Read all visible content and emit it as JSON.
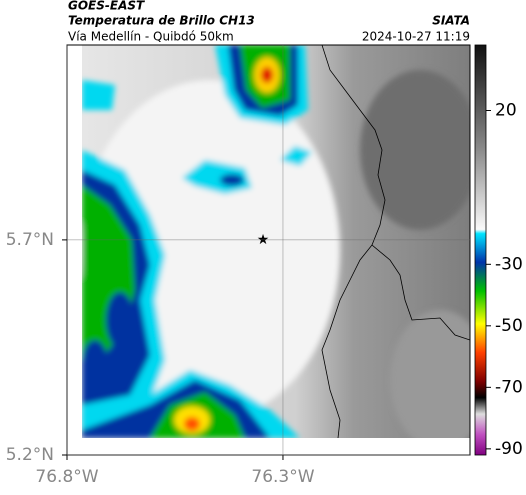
{
  "header": {
    "source": "GOES-EAST",
    "title": "Temperatura de Brillo CH13",
    "subtitle": "Vía Medellín - Quibdó 50km",
    "org": "SIATA",
    "timestamp": "2024-10-27 11:19"
  },
  "map": {
    "xlim": [
      -76.8,
      -75.867
    ],
    "ylim": [
      5.2,
      6.153
    ],
    "xticks": [
      {
        "value": -76.8,
        "label": "76.8°W"
      },
      {
        "value": -76.3,
        "label": "76.3°W"
      }
    ],
    "yticks": [
      {
        "value": 5.7,
        "label": "5.7°N"
      },
      {
        "value": 5.2,
        "label": "5.2°N"
      }
    ]
  },
  "colorbar": {
    "lim": [
      -92,
      41.3
    ],
    "ticks": [
      20,
      -30,
      -50,
      -70,
      -90
    ]
  }
}
